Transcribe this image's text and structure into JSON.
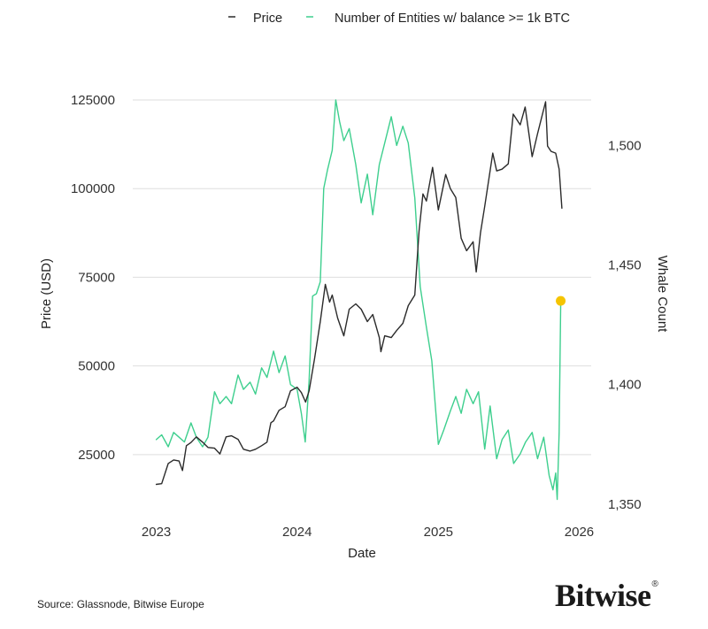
{
  "chart_data": {
    "type": "line",
    "legend": {
      "placement": "top-center",
      "entries": [
        "Price",
        "Number of Entities w/ balance >= 1k BTC"
      ]
    },
    "xlabel": "Date",
    "ylabel_left": "Price (USD)",
    "ylabel_right": "Whale Count",
    "x_ticks": [
      "2023",
      "2024",
      "2025",
      "2026"
    ],
    "y_left_ticks": [
      "25000",
      "50000",
      "75000",
      "100000",
      "125000"
    ],
    "y_right_ticks": [
      "1,350",
      "1,400",
      "1,450",
      "1,500"
    ],
    "ylim_left": [
      9000,
      125000
    ],
    "ylim_right": [
      1347,
      1519
    ],
    "xlim": [
      "2022-11-01",
      "2026-02-01"
    ],
    "grid": "horizontal, left axis",
    "series": [
      {
        "name": "Price",
        "axis": "left",
        "color": "#2b2b2b",
        "x": [
          "2023-01-01",
          "2023-01-15",
          "2023-02-01",
          "2023-02-15",
          "2023-03-01",
          "2023-03-10",
          "2023-03-20",
          "2023-04-01",
          "2023-04-15",
          "2023-05-01",
          "2023-05-15",
          "2023-06-01",
          "2023-06-15",
          "2023-07-01",
          "2023-07-15",
          "2023-08-01",
          "2023-08-15",
          "2023-09-01",
          "2023-09-15",
          "2023-10-01",
          "2023-10-15",
          "2023-10-25",
          "2023-11-01",
          "2023-11-15",
          "2023-12-01",
          "2023-12-15",
          "2024-01-01",
          "2024-01-12",
          "2024-01-23",
          "2024-02-01",
          "2024-02-15",
          "2024-03-01",
          "2024-03-14",
          "2024-03-25",
          "2024-04-01",
          "2024-04-15",
          "2024-05-01",
          "2024-05-15",
          "2024-06-01",
          "2024-06-15",
          "2024-07-01",
          "2024-07-15",
          "2024-08-01",
          "2024-08-05",
          "2024-08-15",
          "2024-09-01",
          "2024-09-15",
          "2024-10-01",
          "2024-10-15",
          "2024-11-01",
          "2024-11-12",
          "2024-11-22",
          "2024-12-01",
          "2024-12-17",
          "2025-01-01",
          "2025-01-20",
          "2025-02-01",
          "2025-02-15",
          "2025-03-01",
          "2025-03-15",
          "2025-04-01",
          "2025-04-09",
          "2025-04-20",
          "2025-05-01",
          "2025-05-22",
          "2025-06-01",
          "2025-06-15",
          "2025-07-01",
          "2025-07-14",
          "2025-08-01",
          "2025-08-14",
          "2025-09-01",
          "2025-09-15",
          "2025-10-06",
          "2025-10-11",
          "2025-10-20",
          "2025-11-01",
          "2025-11-10",
          "2025-11-17"
        ],
        "values": [
          16600,
          16800,
          22500,
          23500,
          23200,
          20500,
          27500,
          28400,
          30000,
          28500,
          27000,
          26800,
          25200,
          30000,
          30300,
          29300,
          26500,
          26000,
          26500,
          27500,
          28500,
          34000,
          34500,
          37500,
          38500,
          43000,
          44000,
          42500,
          39800,
          43000,
          52000,
          62500,
          73000,
          68000,
          70000,
          63500,
          58500,
          66000,
          67500,
          66000,
          62500,
          64500,
          58000,
          54000,
          58500,
          58000,
          60000,
          62000,
          67000,
          70000,
          88000,
          98500,
          96500,
          106000,
          94000,
          104000,
          100000,
          97500,
          86000,
          82500,
          85000,
          76500,
          87500,
          95000,
          110000,
          105000,
          105500,
          107000,
          121000,
          118000,
          123000,
          109000,
          115500,
          124500,
          112000,
          110500,
          110000,
          105500,
          94500
        ]
      },
      {
        "name": "Number of Entities w/ balance >= 1k BTC",
        "axis": "right",
        "color": "#3ecf8e",
        "x": [
          "2023-01-01",
          "2023-01-15",
          "2023-02-01",
          "2023-02-15",
          "2023-03-01",
          "2023-03-15",
          "2023-04-01",
          "2023-04-15",
          "2023-05-01",
          "2023-05-15",
          "2023-06-01",
          "2023-06-15",
          "2023-07-01",
          "2023-07-15",
          "2023-08-01",
          "2023-08-15",
          "2023-09-01",
          "2023-09-15",
          "2023-10-01",
          "2023-10-15",
          "2023-11-01",
          "2023-11-15",
          "2023-12-01",
          "2023-12-15",
          "2024-01-01",
          "2024-01-12",
          "2024-01-22",
          "2024-02-01",
          "2024-02-10",
          "2024-02-20",
          "2024-03-01",
          "2024-03-10",
          "2024-03-20",
          "2024-04-01",
          "2024-04-10",
          "2024-04-20",
          "2024-05-01",
          "2024-05-15",
          "2024-06-01",
          "2024-06-15",
          "2024-07-01",
          "2024-07-15",
          "2024-08-01",
          "2024-08-15",
          "2024-09-01",
          "2024-09-15",
          "2024-10-01",
          "2024-10-15",
          "2024-11-01",
          "2024-11-15",
          "2024-12-01",
          "2024-12-15",
          "2025-01-01",
          "2025-01-15",
          "2025-02-01",
          "2025-02-15",
          "2025-03-01",
          "2025-03-15",
          "2025-04-01",
          "2025-04-15",
          "2025-05-01",
          "2025-05-15",
          "2025-06-01",
          "2025-06-15",
          "2025-07-01",
          "2025-07-15",
          "2025-08-01",
          "2025-08-15",
          "2025-09-01",
          "2025-09-15",
          "2025-10-01",
          "2025-10-15",
          "2025-10-25",
          "2025-11-01",
          "2025-11-05",
          "2025-11-10",
          "2025-11-14"
        ],
        "values": [
          1377,
          1379,
          1374,
          1380,
          1378,
          1376,
          1384,
          1378,
          1374,
          1378,
          1397,
          1392,
          1395,
          1392,
          1404,
          1398,
          1401,
          1396,
          1407,
          1403,
          1414,
          1405,
          1412,
          1400,
          1398,
          1388,
          1376,
          1402,
          1437,
          1438,
          1443,
          1482,
          1490,
          1498,
          1519,
          1510,
          1502,
          1507,
          1492,
          1476,
          1488,
          1471,
          1492,
          1501,
          1512,
          1500,
          1508,
          1501,
          1478,
          1441,
          1424,
          1410,
          1375,
          1381,
          1389,
          1395,
          1388,
          1398,
          1392,
          1397,
          1373,
          1391,
          1369,
          1377,
          1381,
          1367,
          1371,
          1376,
          1380,
          1369,
          1378,
          1362,
          1356,
          1363,
          1352,
          1380,
          1435
        ]
      }
    ],
    "annotations": [
      {
        "type": "marker",
        "date": "2025-11-14",
        "whale_count": 1435,
        "color": "#f5c400"
      }
    ]
  },
  "footer": {
    "source": "Source: Glassnode, Bitwise Europe",
    "brand": "Bitwise",
    "brand_mark": "®"
  }
}
